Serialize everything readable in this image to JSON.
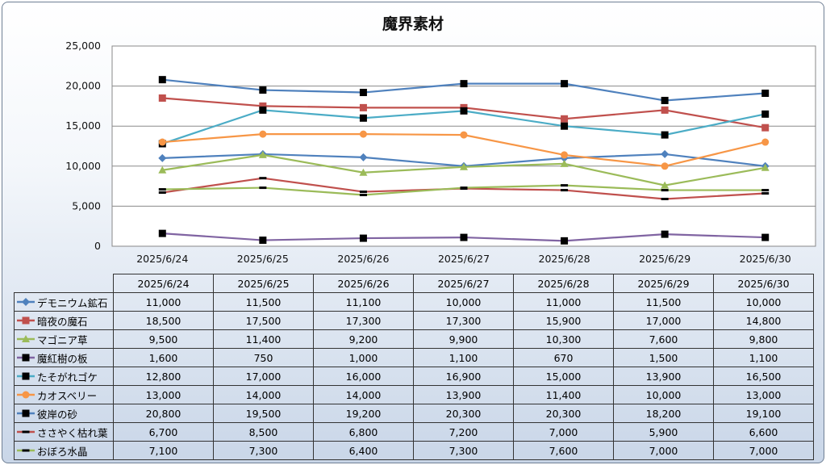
{
  "chart_data": {
    "type": "line",
    "title": "魔界素材",
    "categories": [
      "2025/6/24",
      "2025/6/25",
      "2025/6/26",
      "2025/6/27",
      "2025/6/28",
      "2025/6/29",
      "2025/6/30"
    ],
    "y_ticks": [
      "0",
      "5,000",
      "10,000",
      "15,000",
      "20,000",
      "25,000"
    ],
    "ylim": [
      0,
      25000
    ],
    "grid": true,
    "legend": "data table below chart",
    "series": [
      {
        "name": "デモニウム鉱石",
        "color": "#4f81bd",
        "marker": "diamond",
        "values": [
          11000,
          11500,
          11100,
          10000,
          11000,
          11500,
          10000
        ],
        "labels": [
          "11,000",
          "11,500",
          "11,100",
          "10,000",
          "11,000",
          "11,500",
          "10,000"
        ]
      },
      {
        "name": "暗夜の魔石",
        "color": "#c0504d",
        "marker": "square",
        "values": [
          18500,
          17500,
          17300,
          17300,
          15900,
          17000,
          14800
        ],
        "labels": [
          "18,500",
          "17,500",
          "17,300",
          "17,300",
          "15,900",
          "17,000",
          "14,800"
        ]
      },
      {
        "name": "マゴニア草",
        "color": "#9bbb59",
        "marker": "triangle",
        "values": [
          9500,
          11400,
          9200,
          9900,
          10300,
          7600,
          9800
        ],
        "labels": [
          "9,500",
          "11,400",
          "9,200",
          "9,900",
          "10,300",
          "7,600",
          "9,800"
        ]
      },
      {
        "name": "魔紅樹の板",
        "color": "#8064a2",
        "marker": "black-square",
        "values": [
          1600,
          750,
          1000,
          1100,
          670,
          1500,
          1100
        ],
        "labels": [
          "1,600",
          "750",
          "1,000",
          "1,100",
          "670",
          "1,500",
          "1,100"
        ]
      },
      {
        "name": "たそがれゴケ",
        "color": "#4bacc6",
        "marker": "black-square",
        "values": [
          12800,
          17000,
          16000,
          16900,
          15000,
          13900,
          16500
        ],
        "labels": [
          "12,800",
          "17,000",
          "16,000",
          "16,900",
          "15,000",
          "13,900",
          "16,500"
        ]
      },
      {
        "name": "カオスベリー",
        "color": "#f79646",
        "marker": "circle",
        "values": [
          13000,
          14000,
          14000,
          13900,
          11400,
          10000,
          13000
        ],
        "labels": [
          "13,000",
          "14,000",
          "14,000",
          "13,900",
          "11,400",
          "10,000",
          "13,000"
        ]
      },
      {
        "name": "彼岸の砂",
        "color": "#4f81bd",
        "marker": "black-square",
        "values": [
          20800,
          19500,
          19200,
          20300,
          20300,
          18200,
          19100
        ],
        "labels": [
          "20,800",
          "19,500",
          "19,200",
          "20,300",
          "20,300",
          "18,200",
          "19,100"
        ]
      },
      {
        "name": "ささやく枯れ葉",
        "color": "#c0504d",
        "marker": "dash",
        "values": [
          6700,
          8500,
          6800,
          7200,
          7000,
          5900,
          6600
        ],
        "labels": [
          "6,700",
          "8,500",
          "6,800",
          "7,200",
          "7,000",
          "5,900",
          "6,600"
        ]
      },
      {
        "name": "おぼろ水晶",
        "color": "#9bbb59",
        "marker": "dash",
        "values": [
          7100,
          7300,
          6400,
          7300,
          7600,
          7000,
          7000
        ],
        "labels": [
          "7,100",
          "7,300",
          "6,400",
          "7,300",
          "7,600",
          "7,000",
          "7,000"
        ]
      }
    ]
  }
}
